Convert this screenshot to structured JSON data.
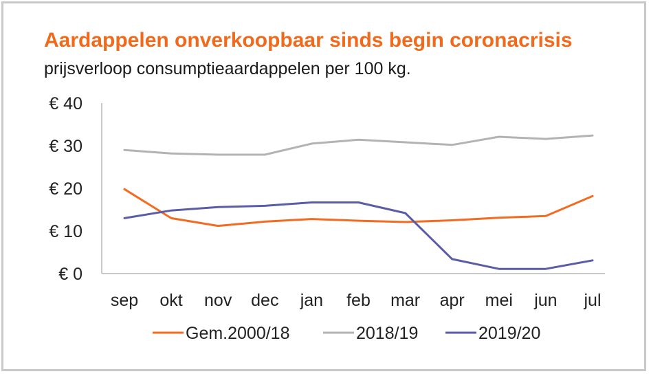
{
  "chart_data": {
    "type": "line",
    "title": "Aardappelen onverkoopbaar sinds begin coronacrisis",
    "subtitle": "prijsverloop consumptieaardappelen per 100 kg.",
    "categories": [
      "sep",
      "okt",
      "nov",
      "dec",
      "jan",
      "feb",
      "mar",
      "apr",
      "mei",
      "jun",
      "jul"
    ],
    "y_ticks": [
      "€ 40",
      "€ 30",
      "€ 20",
      "€ 10",
      "€ 0"
    ],
    "ylim": [
      0,
      40
    ],
    "grid": false,
    "legend_position": "bottom",
    "series": [
      {
        "name": "Gem.2000/18",
        "color": "#f26b21",
        "values": [
          19.8,
          13.0,
          11.2,
          12.2,
          12.8,
          12.4,
          12.1,
          12.5,
          13.1,
          13.5,
          18.2
        ]
      },
      {
        "name": "2018/19",
        "color": "#b3b3b3",
        "values": [
          29.0,
          28.2,
          27.9,
          27.9,
          30.5,
          31.4,
          30.8,
          30.2,
          32.1,
          31.6,
          32.4
        ]
      },
      {
        "name": "2019/20",
        "color": "#5b5ca6",
        "values": [
          13.0,
          14.8,
          15.6,
          15.9,
          16.7,
          16.7,
          14.2,
          3.4,
          1.1,
          1.1,
          3.1
        ]
      }
    ]
  }
}
